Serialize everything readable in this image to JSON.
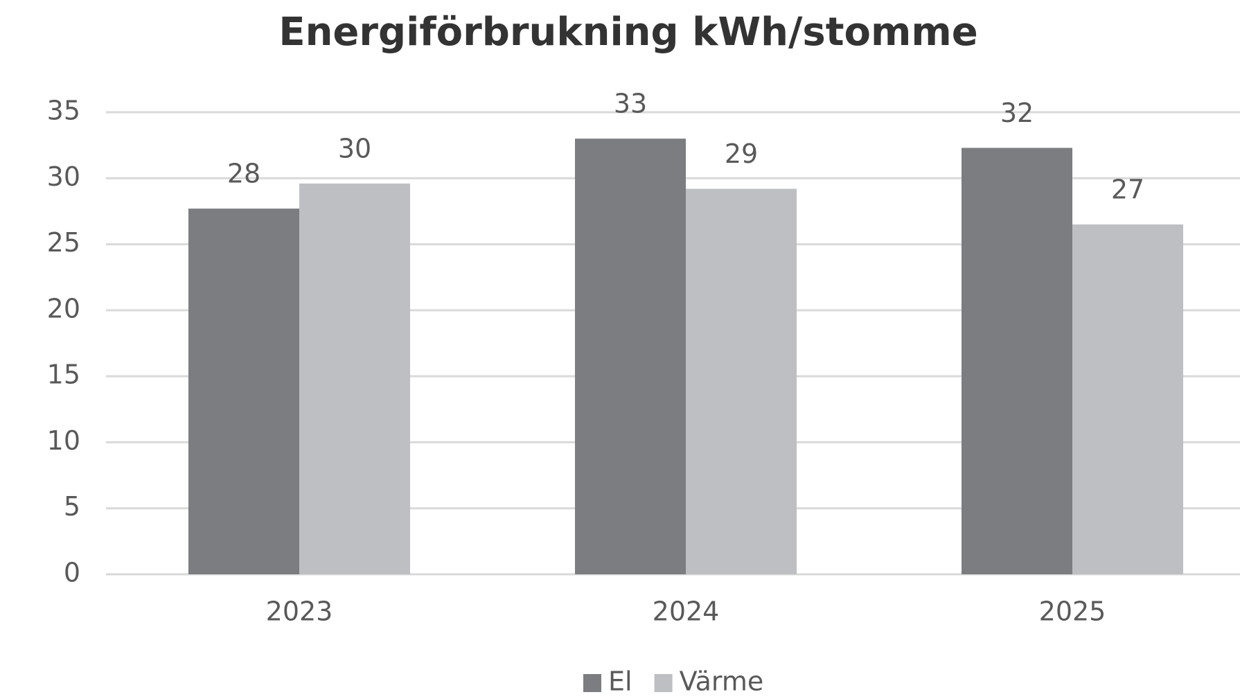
{
  "chart_data": {
    "type": "bar",
    "title": "Energiförbrukning kWh/stomme",
    "categories": [
      "2023",
      "2024",
      "2025"
    ],
    "series": [
      {
        "name": "El",
        "color": "#7c7d81",
        "values": [
          27.7,
          33.0,
          32.3
        ],
        "value_labels": [
          "28",
          "33",
          "32"
        ]
      },
      {
        "name": "Värme",
        "color": "#bebfc3",
        "values": [
          29.6,
          29.2,
          26.5
        ],
        "value_labels": [
          "30",
          "29",
          "27"
        ]
      }
    ],
    "ylim": [
      0,
      35
    ],
    "yticks": [
      0,
      5,
      10,
      15,
      20,
      25,
      30,
      35
    ],
    "grid": true,
    "legend": "bottom"
  }
}
